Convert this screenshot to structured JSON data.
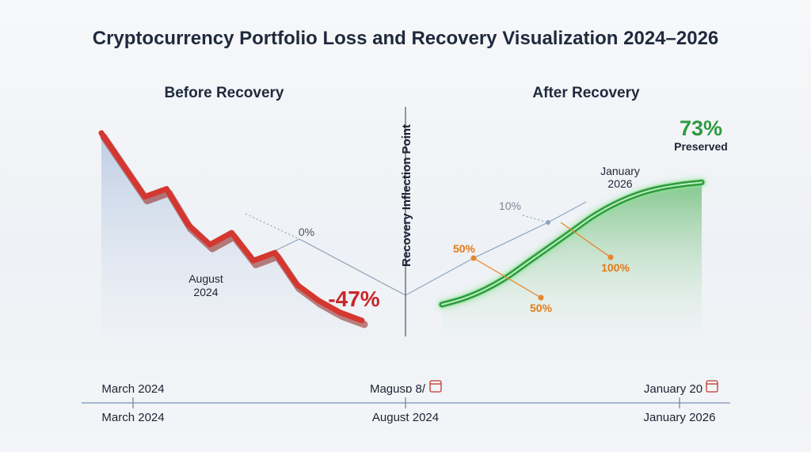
{
  "chart_data": {
    "type": "line",
    "title": "Cryptocurrency Portfolio Loss and Recovery Visualization 2024–2026",
    "panels": [
      {
        "name": "Before Recovery",
        "x": [
          0,
          5,
          10,
          15,
          20,
          25,
          30,
          35,
          40,
          45,
          50,
          55,
          60
        ],
        "values": [
          100,
          92,
          84,
          86,
          77,
          72,
          75,
          68,
          70,
          62,
          58,
          55,
          53
        ],
        "ylim": [
          50,
          100
        ],
        "change_label": "-47%",
        "annotations": [
          "August 2024",
          "0%"
        ]
      },
      {
        "name": "After Recovery",
        "x": [
          0,
          5,
          10,
          15,
          20,
          25,
          30,
          35,
          40,
          45,
          50,
          55,
          60
        ],
        "values": [
          53,
          54,
          55.5,
          57.5,
          60,
          62.5,
          65,
          67.5,
          69.5,
          71,
          72,
          72.6,
          73
        ],
        "ylim": [
          50,
          75
        ],
        "change_label": "73%",
        "change_sub": "Preserved",
        "annotations": [
          "January 2026",
          "10%",
          "50%",
          "100%",
          "50%"
        ]
      }
    ],
    "divider_label": "Recovery Inflection Point",
    "timeline_top": [
      "March 2024",
      "Magusɒ 8/",
      "January 20"
    ],
    "timeline_bottom": [
      "March 2024",
      "August 2024",
      "January 2026"
    ],
    "colors": {
      "loss": "#d4372f",
      "gain": "#3aa84a",
      "accent": "#e07b1a"
    }
  }
}
